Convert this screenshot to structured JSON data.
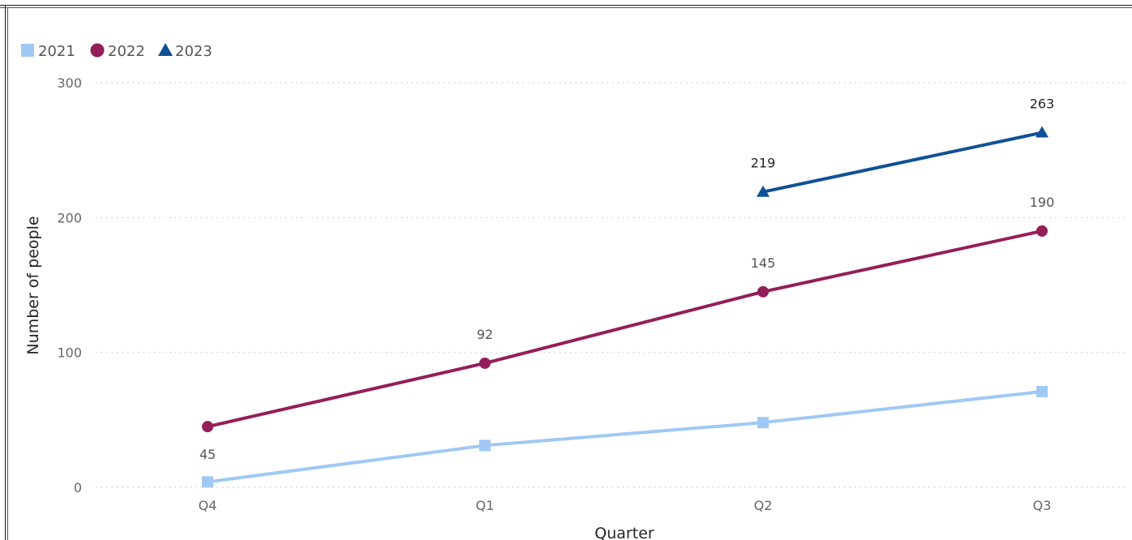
{
  "chart_data": {
    "type": "line",
    "title": "",
    "xlabel": "Quarter",
    "ylabel": "Number of people",
    "categories": [
      "Q4",
      "Q1",
      "Q2",
      "Q3"
    ],
    "ylim": [
      0,
      300
    ],
    "yticks": [
      0,
      100,
      200,
      300
    ],
    "ytick_labels": [
      "0",
      "100",
      "200",
      "300"
    ],
    "grid": "horizontal dotted",
    "legend": "top-left",
    "series": [
      {
        "name": "2021",
        "color": "#9fc8f4",
        "marker": "square",
        "values": [
          4,
          31,
          48,
          71
        ],
        "labels": [
          null,
          null,
          null,
          null
        ]
      },
      {
        "name": "2022",
        "color": "#941e5a",
        "marker": "circle",
        "values": [
          45,
          92,
          145,
          190
        ],
        "labels": [
          "45",
          "92",
          "145",
          "190"
        ]
      },
      {
        "name": "2023",
        "color": "#0f5196",
        "marker": "triangle",
        "values": [
          null,
          null,
          219,
          263
        ],
        "labels": [
          null,
          null,
          "219",
          "263"
        ]
      }
    ]
  }
}
